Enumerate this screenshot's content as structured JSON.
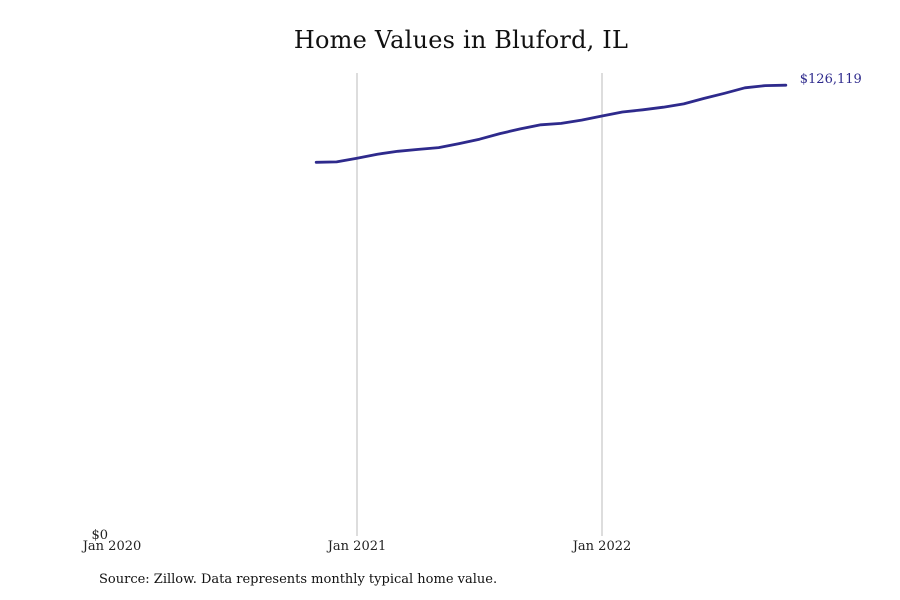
{
  "title": "Home Values in Bluford, IL",
  "source_note": "Source: Zillow. Data represents monthly typical home value.",
  "colors": {
    "line": "#2e2a8c",
    "gridline": "#bbbbbb",
    "text": "#111111"
  },
  "chart_data": {
    "type": "line",
    "title": "Home Values in Bluford, IL",
    "xlabel": "",
    "ylabel": "",
    "x_ticks": [
      "Jan 2020",
      "Jan 2021",
      "Jan 2022"
    ],
    "y_ticks": [
      "$0"
    ],
    "ylim": [
      0,
      126119
    ],
    "grid": "vertical at year ticks",
    "end_label": "$126,119",
    "series": [
      {
        "x": [
          "2020-11",
          "2020-12",
          "2021-01",
          "2021-02",
          "2021-03",
          "2021-04",
          "2021-05",
          "2021-06",
          "2021-07",
          "2021-08",
          "2021-09",
          "2021-10",
          "2021-11",
          "2021-12",
          "2022-01",
          "2022-02",
          "2022-03",
          "2022-04",
          "2022-05",
          "2022-06",
          "2022-07",
          "2022-08",
          "2022-09",
          "2022-10"
        ],
        "values": [
          101800,
          101900,
          102900,
          104000,
          104800,
          105300,
          105800,
          106900,
          108100,
          109600,
          110900,
          112000,
          112400,
          113300,
          114400,
          115500,
          116100,
          116800,
          117700,
          119200,
          120600,
          122100,
          122700,
          122800
        ]
      }
    ]
  }
}
